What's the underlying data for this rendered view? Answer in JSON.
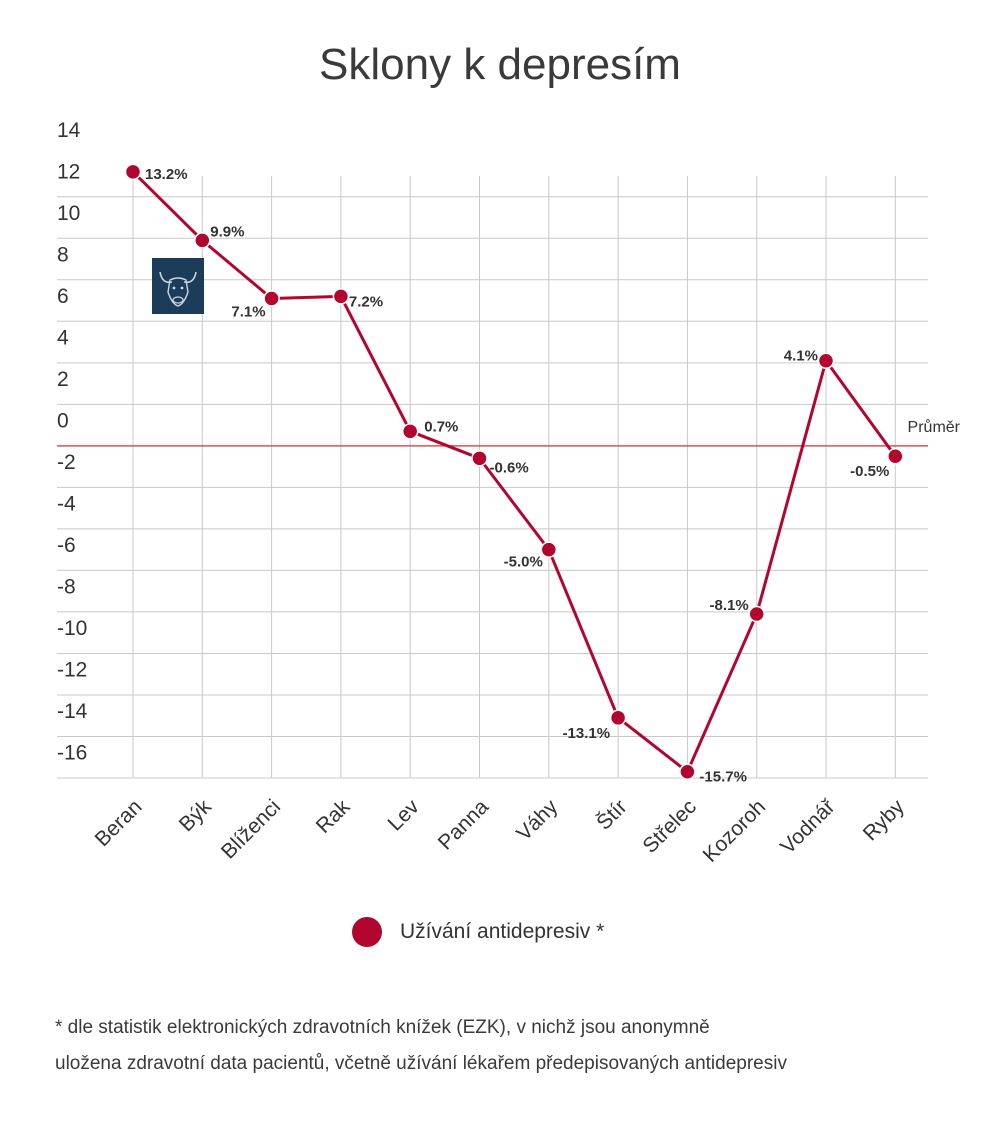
{
  "title": "Sklony k depresím",
  "chart_data": {
    "type": "line",
    "title": "Sklony k depresím",
    "categories": [
      "Beran",
      "Býk",
      "Blíženci",
      "Rak",
      "Lev",
      "Panna",
      "Váhy",
      "Štír",
      "Střelec",
      "Kozoroh",
      "Vodnář",
      "Ryby"
    ],
    "series": [
      {
        "name": "Užívání antidepresiv *",
        "values": [
          13.2,
          9.9,
          7.1,
          7.2,
          0.7,
          -0.6,
          -5.0,
          -13.1,
          -15.7,
          -8.1,
          4.1,
          -0.5
        ],
        "labels": [
          "13.2%",
          "9.9%",
          "7.1%",
          "7.2%",
          "0.7%",
          "-0.6%",
          "-5.0%",
          "-13.1%",
          "-15.7%",
          "-8.1%",
          "4.1%",
          "-0.5%"
        ],
        "color": "#b3062e"
      }
    ],
    "y_ticks": [
      "14",
      "12",
      "10",
      "8",
      "6",
      "4",
      "2",
      "0",
      "-2",
      "-4",
      "-6",
      "-8",
      "-10",
      "-12",
      "-14",
      "-16"
    ],
    "ylim": [
      -16,
      14
    ],
    "reference_line": {
      "value": 0,
      "label": "Průměr",
      "color": "#d9534f"
    },
    "grid": true,
    "legend": "bottom-center"
  },
  "legend": {
    "label": "Užívání antidepresiv *"
  },
  "footnote": {
    "line1": "* dle statistik elektronických zdravotních knížek (EZK), v nichž jsou anonymně",
    "line2": "uložena zdravotní data pacientů, včetně užívání lékařem předepisovaných  antidepresiv"
  },
  "colors": {
    "accent": "#b3062e",
    "grid": "#c8c8c8",
    "reference": "#d9534f",
    "icon_bg": "#1c3d5a"
  },
  "icon": {
    "name": "bull-icon"
  }
}
